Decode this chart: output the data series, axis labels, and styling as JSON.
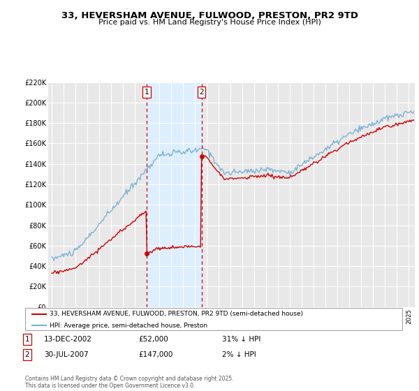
{
  "title": "33, HEVERSHAM AVENUE, FULWOOD, PRESTON, PR2 9TD",
  "subtitle": "Price paid vs. HM Land Registry's House Price Index (HPI)",
  "legend_line1": "33, HEVERSHAM AVENUE, FULWOOD, PRESTON, PR2 9TD (semi-detached house)",
  "legend_line2": "HPI: Average price, semi-detached house, Preston",
  "footer": "Contains HM Land Registry data © Crown copyright and database right 2025.\nThis data is licensed under the Open Government Licence v3.0.",
  "sale1_date": "13-DEC-2002",
  "sale1_price": "£52,000",
  "sale1_hpi": "31% ↓ HPI",
  "sale2_date": "30-JUL-2007",
  "sale2_price": "£147,000",
  "sale2_hpi": "2% ↓ HPI",
  "sale1_x": 2002.96,
  "sale1_y": 52000,
  "sale2_x": 2007.58,
  "sale2_y": 147000,
  "hpi_color": "#7ab3d4",
  "price_color": "#cc0000",
  "vline_color": "#cc0000",
  "shade_color": "#ddeeff",
  "background_color": "#ffffff",
  "plot_bg_color": "#e8e8e8",
  "ylim": [
    0,
    220000
  ],
  "xlim_start": 1994.7,
  "xlim_end": 2025.5
}
